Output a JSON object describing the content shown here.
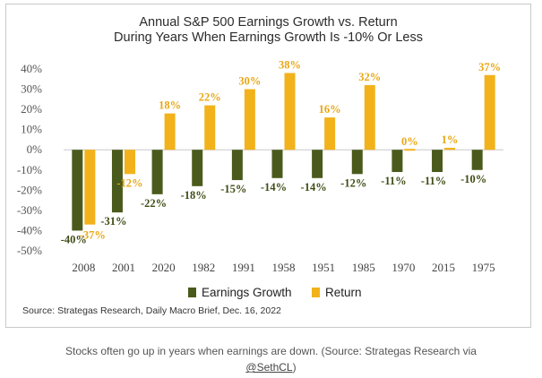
{
  "chart_data": {
    "type": "bar",
    "title": "Annual S&P 500 Earnings Growth vs. Return",
    "subtitle": "During Years When Earnings Growth Is -10% Or Less",
    "categories": [
      "2008",
      "2001",
      "2020",
      "1982",
      "1991",
      "1958",
      "1951",
      "1985",
      "1970",
      "2015",
      "1975"
    ],
    "series": [
      {
        "name": "Earnings Growth",
        "color": "#4a5a1c",
        "values": [
          -40,
          -31,
          -22,
          -18,
          -15,
          -14,
          -14,
          -12,
          -11,
          -11,
          -10
        ],
        "labels": [
          "-40%",
          "-31%",
          "-22%",
          "-18%",
          "-15%",
          "-14%",
          "-14%",
          "-12%",
          "-11%",
          "-11%",
          "-10%"
        ]
      },
      {
        "name": "Return",
        "color": "#f2b21b",
        "values": [
          -37,
          -12,
          18,
          22,
          30,
          38,
          16,
          32,
          0,
          1,
          37
        ],
        "labels": [
          "-37%",
          "-12%",
          "18%",
          "22%",
          "30%",
          "38%",
          "16%",
          "32%",
          "0%",
          "1%",
          "37%"
        ]
      }
    ],
    "yticks": [
      "40%",
      "30%",
      "20%",
      "10%",
      "0%",
      "-10%",
      "-20%",
      "-30%",
      "-40%",
      "-50%"
    ],
    "ylim": [
      -50,
      40
    ],
    "xlabel": "",
    "ylabel": "",
    "legend": "bottom",
    "source": "Source: Strategas Research, Daily Macro Brief, Dec. 16, 2022"
  },
  "caption": {
    "text": "Stocks often go up in years when earnings are down. (Source: Strategas Research via",
    "handle": "@SethCL",
    "close": ")"
  }
}
